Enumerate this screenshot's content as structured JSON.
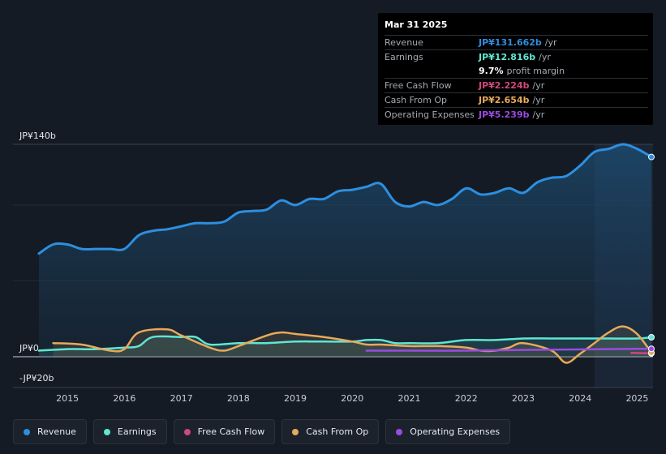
{
  "chart_data": {
    "type": "area",
    "title": "",
    "y_axis": {
      "top_label": "JP¥140b",
      "zero_label": "JP¥0",
      "bottom_label": "-JP¥20b",
      "ylim": [
        -20,
        140
      ]
    },
    "x_tick_labels": [
      "2015",
      "2016",
      "2017",
      "2018",
      "2019",
      "2020",
      "2021",
      "2022",
      "2023",
      "2024",
      "2025"
    ],
    "x_ticks": [
      2015,
      2016,
      2017,
      2018,
      2019,
      2020,
      2021,
      2022,
      2023,
      2024,
      2025
    ],
    "xlim": [
      2014.5,
      2025.25
    ],
    "forecast_start": 2024.25,
    "series": [
      {
        "name": "Revenue",
        "color": "#2d8fe0",
        "x": [
          2014.5,
          2014.75,
          2015.0,
          2015.25,
          2015.5,
          2015.75,
          2016.0,
          2016.25,
          2016.5,
          2016.75,
          2017.0,
          2017.25,
          2017.5,
          2017.75,
          2018.0,
          2018.25,
          2018.5,
          2018.75,
          2019.0,
          2019.25,
          2019.5,
          2019.75,
          2020.0,
          2020.25,
          2020.5,
          2020.75,
          2021.0,
          2021.25,
          2021.5,
          2021.75,
          2022.0,
          2022.25,
          2022.5,
          2022.75,
          2023.0,
          2023.25,
          2023.5,
          2023.75,
          2024.0,
          2024.25,
          2024.5,
          2024.75,
          2025.0,
          2025.25
        ],
        "values": [
          68,
          74,
          74,
          71,
          71,
          71,
          71,
          80,
          83,
          84,
          86,
          88,
          88,
          89,
          95,
          96,
          97,
          103,
          100,
          104,
          104,
          109,
          110,
          112,
          114,
          102,
          99,
          102,
          100,
          104,
          111,
          107,
          108,
          111,
          108,
          115,
          118,
          119,
          126,
          135,
          137,
          140,
          137,
          131.662
        ]
      },
      {
        "name": "Earnings",
        "color": "#5ee6d3",
        "x": [
          2014.5,
          2015.0,
          2015.5,
          2016.0,
          2016.25,
          2016.5,
          2017.0,
          2017.25,
          2017.5,
          2018.0,
          2018.5,
          2019.0,
          2019.5,
          2020.0,
          2020.25,
          2020.5,
          2020.75,
          2021.0,
          2021.5,
          2022.0,
          2022.5,
          2023.0,
          2023.5,
          2024.0,
          2024.5,
          2025.0,
          2025.25
        ],
        "values": [
          4,
          5,
          5,
          6,
          7,
          13,
          13,
          13,
          8,
          9,
          9,
          10,
          10,
          10,
          11,
          11,
          9,
          9,
          9,
          11,
          11,
          12,
          12,
          12,
          12,
          12,
          12.816
        ]
      },
      {
        "name": "Free Cash Flow",
        "color": "#d2467e",
        "x": [
          2024.9,
          2025.25
        ],
        "values": [
          2.5,
          2.224
        ]
      },
      {
        "name": "Cash From Op",
        "color": "#e8a95a",
        "x": [
          2014.75,
          2015.25,
          2015.75,
          2016.0,
          2016.25,
          2016.75,
          2017.0,
          2017.5,
          2017.75,
          2018.0,
          2018.5,
          2018.75,
          2019.0,
          2019.5,
          2020.0,
          2020.25,
          2020.5,
          2021.0,
          2021.5,
          2022.0,
          2022.25,
          2022.5,
          2022.75,
          2023.0,
          2023.5,
          2023.75,
          2024.0,
          2024.25,
          2024.5,
          2024.75,
          2025.0,
          2025.25
        ],
        "values": [
          9,
          8,
          4,
          5,
          16,
          18,
          14,
          6,
          4,
          7,
          14,
          16,
          15,
          13,
          10,
          8,
          8,
          7,
          7,
          6,
          4,
          4,
          6,
          9,
          4,
          -4,
          2,
          9,
          16,
          20,
          15,
          2.654
        ]
      },
      {
        "name": "Operating Expenses",
        "color": "#9a4be0",
        "x": [
          2020.25,
          2021.0,
          2022.0,
          2023.0,
          2024.0,
          2024.5,
          2025.0,
          2025.25
        ],
        "values": [
          4,
          4,
          4,
          4.5,
          4.8,
          5,
          5.2,
          5.239
        ]
      }
    ]
  },
  "tooltip": {
    "date": "Mar 31 2025",
    "rows": [
      {
        "label": "Revenue",
        "value": "JP¥131.662b",
        "unit": "/yr",
        "color": "#2d8fe0"
      },
      {
        "label": "Earnings",
        "value": "JP¥12.816b",
        "unit": "/yr",
        "color": "#5ee6d3"
      },
      {
        "label": "Free Cash Flow",
        "value": "JP¥2.224b",
        "unit": "/yr",
        "color": "#d2467e"
      },
      {
        "label": "Cash From Op",
        "value": "JP¥2.654b",
        "unit": "/yr",
        "color": "#e8a95a"
      },
      {
        "label": "Operating Expenses",
        "value": "JP¥5.239b",
        "unit": "/yr",
        "color": "#9a4be0"
      }
    ],
    "margin_value": "9.7%",
    "margin_text": "profit margin"
  },
  "legend": [
    {
      "label": "Revenue",
      "color": "#2d8fe0"
    },
    {
      "label": "Earnings",
      "color": "#5ee6d3"
    },
    {
      "label": "Free Cash Flow",
      "color": "#d2467e"
    },
    {
      "label": "Cash From Op",
      "color": "#e8a95a"
    },
    {
      "label": "Operating Expenses",
      "color": "#9a4be0"
    }
  ]
}
